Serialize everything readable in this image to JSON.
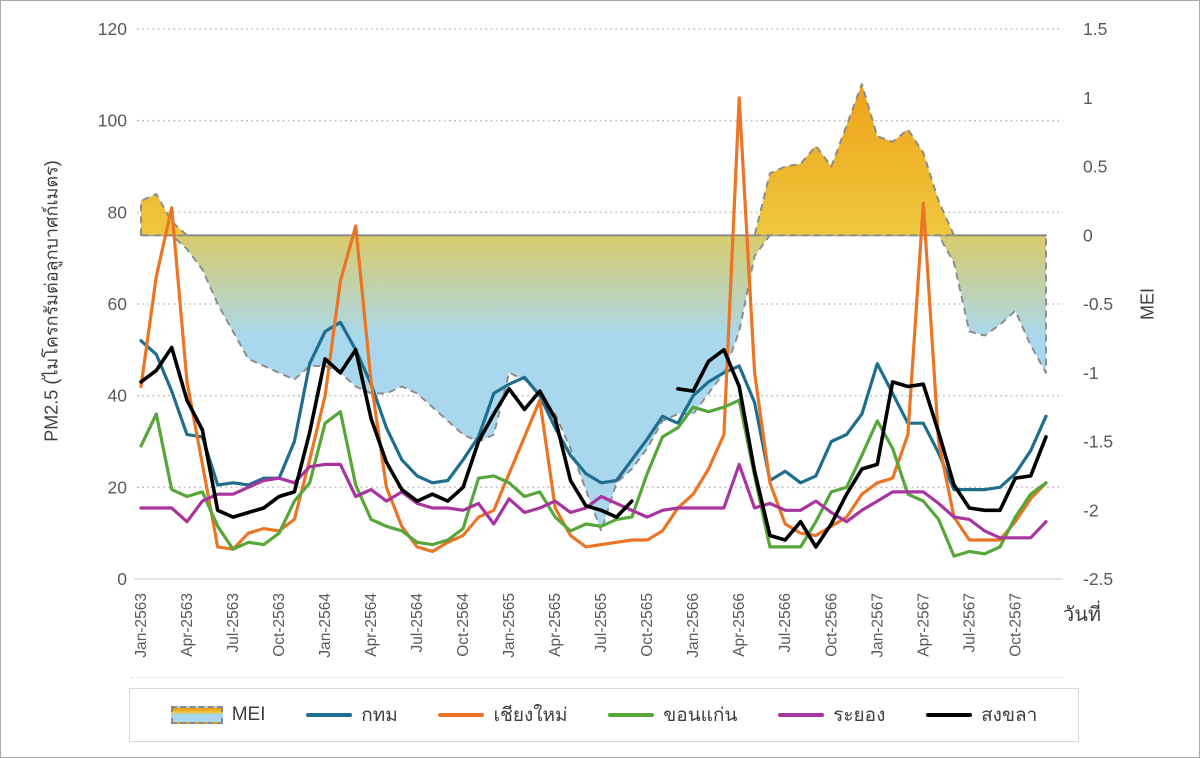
{
  "chart_data": {
    "type": "combo",
    "title": "",
    "x_axis": {
      "title": "วันที่",
      "months_total": 60,
      "tick_month_indices": [
        0,
        3,
        6,
        9,
        12,
        15,
        18,
        21,
        24,
        27,
        30,
        33,
        36,
        39,
        42,
        45,
        48,
        51,
        54,
        57
      ],
      "tick_labels": [
        "Jan-2563",
        "Apr-2563",
        "Jul-2563",
        "Oct-2563",
        "Jan-2564",
        "Apr-2564",
        "Jul-2564",
        "Oct-2564",
        "Jan-2565",
        "Apr-2565",
        "Jul-2565",
        "Oct-2565",
        "Jan-2566",
        "Apr-2566",
        "Jul-2566",
        "Oct-2566",
        "Jan-2567",
        "Apr-2567",
        "Jul-2567",
        "Oct-2567"
      ]
    },
    "y_left": {
      "title": "PM2.5 (ไมโครกรัมต่อลูกบาศก์เมตร)",
      "min": 0,
      "max": 120,
      "tick_step": 20,
      "tick_labels": [
        "0",
        "20",
        "40",
        "60",
        "80",
        "100",
        "120"
      ]
    },
    "y_right": {
      "title": "MEI",
      "min": -2.5,
      "max": 1.5,
      "tick_step": 0.5,
      "tick_labels": [
        "1.5",
        "1",
        "0.5",
        "0",
        "-0.5",
        "-1",
        "-1.5",
        "-2",
        "-2.5"
      ]
    },
    "grid": {
      "horizontal": "dotted",
      "color": "#c3c3c3"
    },
    "area_series": {
      "name": "MEI",
      "axis": "right",
      "baseline": 0,
      "border_color": "#8a8a8a",
      "border_style": "dashed",
      "gradient_positive": [
        "#F0930A",
        "#EDC83E"
      ],
      "gradient_negative": [
        "#D9CB6B",
        "#A9D8EE"
      ],
      "values": [
        0.25,
        0.3,
        0.1,
        -0.1,
        -0.25,
        -0.5,
        -0.7,
        -0.9,
        -0.95,
        -1.0,
        -1.05,
        -0.95,
        -0.95,
        -1.0,
        -1.1,
        -1.15,
        -1.15,
        -1.1,
        -1.15,
        -1.25,
        -1.35,
        -1.45,
        -1.5,
        -1.45,
        -1.0,
        -1.05,
        -1.15,
        -1.3,
        -1.55,
        -1.85,
        -2.15,
        -1.8,
        -1.7,
        -1.55,
        -1.35,
        -1.3,
        -1.3,
        -1.15,
        -1.0,
        -0.7,
        -0.15,
        0.45,
        0.5,
        0.52,
        0.65,
        0.5,
        0.8,
        1.1,
        0.72,
        0.68,
        0.77,
        0.6,
        0.25,
        -0.2,
        -0.7,
        -0.73,
        -0.65,
        -0.55,
        -0.8,
        -1.0
      ]
    },
    "line_series": [
      {
        "name": "กทม",
        "color": "#1F6E8E",
        "values": [
          52,
          49,
          41,
          31.5,
          31,
          20.5,
          21,
          20.5,
          22,
          22,
          30,
          47,
          54,
          56,
          50,
          42.5,
          33,
          26,
          22.5,
          21,
          21.5,
          26,
          31,
          40.5,
          42.5,
          44,
          40,
          33,
          27,
          23,
          21,
          21.5,
          26,
          30.5,
          35.5,
          34,
          40,
          43,
          45,
          46.5,
          38.5,
          21.5,
          23.5,
          21,
          22.5,
          30,
          31.5,
          36,
          47,
          40.5,
          34,
          34,
          27.5,
          19.5,
          19.5,
          19.5,
          20,
          23,
          28,
          35.5
        ]
      },
      {
        "name": "เชียงใหม่",
        "color": "#EB7524",
        "values": [
          42,
          66,
          81,
          43,
          25,
          7,
          6.5,
          10,
          11,
          10.5,
          13,
          26,
          40,
          65,
          77,
          43,
          20,
          11.5,
          7,
          6,
          8,
          9.5,
          13.5,
          15,
          23,
          31,
          39,
          15.5,
          9.5,
          7,
          7.5,
          8,
          8.5,
          8.5,
          10.5,
          15.5,
          18.5,
          24,
          31.5,
          105,
          45,
          21,
          12,
          10,
          9.5,
          11.5,
          13.5,
          18.5,
          21,
          22,
          31.5,
          82,
          30,
          13.5,
          8.5,
          8.5,
          8.5,
          12.5,
          17.5,
          21
        ]
      },
      {
        "name": "ขอนแก่น",
        "color": "#57A639",
        "values": [
          29,
          36,
          19.5,
          18,
          19,
          11.5,
          6.5,
          8,
          7.5,
          10,
          17,
          21,
          34,
          36.5,
          20.5,
          13,
          11.5,
          10.5,
          8,
          7.5,
          8.5,
          11,
          22,
          22.5,
          21,
          18,
          19,
          13.5,
          10.5,
          12,
          11.5,
          13,
          13.5,
          23,
          31,
          33,
          37.5,
          36.5,
          37.5,
          39,
          22.5,
          7,
          7,
          7,
          12.5,
          19,
          20,
          27,
          34.5,
          28.5,
          18.5,
          17,
          13,
          5,
          6,
          5.5,
          7,
          13.5,
          18.5,
          21
        ]
      },
      {
        "name": "ระยอง",
        "color": "#A8349F",
        "values": [
          15.5,
          15.5,
          15.5,
          12.5,
          17,
          18.5,
          18.5,
          20,
          21.5,
          22,
          21,
          24.5,
          25,
          25,
          18,
          19.5,
          17,
          19,
          16.5,
          15.5,
          15.5,
          15,
          16.5,
          12,
          17.5,
          14.5,
          15.5,
          17,
          14.5,
          15.5,
          18,
          16.5,
          15,
          13.5,
          15,
          15.5,
          15.5,
          15.5,
          15.5,
          25,
          15.5,
          16.5,
          15,
          15,
          17,
          14.5,
          12.5,
          15,
          17,
          19,
          19,
          19,
          16.5,
          13.5,
          13,
          10.5,
          9,
          9,
          9,
          12.5
        ]
      },
      {
        "name": "สงขลา",
        "color": "#000000",
        "values": [
          43,
          45.5,
          50.5,
          39,
          32.5,
          15,
          13.5,
          14.5,
          15.5,
          18,
          19,
          32,
          48,
          45,
          50,
          35,
          25.5,
          19.5,
          17,
          18.5,
          17,
          20,
          30,
          36,
          41.5,
          37,
          41,
          35,
          21.5,
          16,
          15,
          13.5,
          17,
          null,
          null,
          41.5,
          41,
          47.5,
          50,
          42,
          23.5,
          9.5,
          8.5,
          12.5,
          7,
          12,
          18.5,
          24,
          25,
          43,
          42,
          42.5,
          32,
          20.5,
          15.5,
          15,
          15,
          22,
          22.5,
          31
        ]
      }
    ],
    "legend": [
      {
        "label": "MEI",
        "type": "area"
      },
      {
        "label": "กทม",
        "type": "line",
        "color": "#1F6E8E"
      },
      {
        "label": "เชียงใหม่",
        "type": "line",
        "color": "#EB7524"
      },
      {
        "label": "ขอนแก่น",
        "type": "line",
        "color": "#57A639"
      },
      {
        "label": "ระยอง",
        "type": "line",
        "color": "#A8349F"
      },
      {
        "label": "สงขลา",
        "type": "line",
        "color": "#000000"
      }
    ],
    "legend_position": "bottom"
  }
}
